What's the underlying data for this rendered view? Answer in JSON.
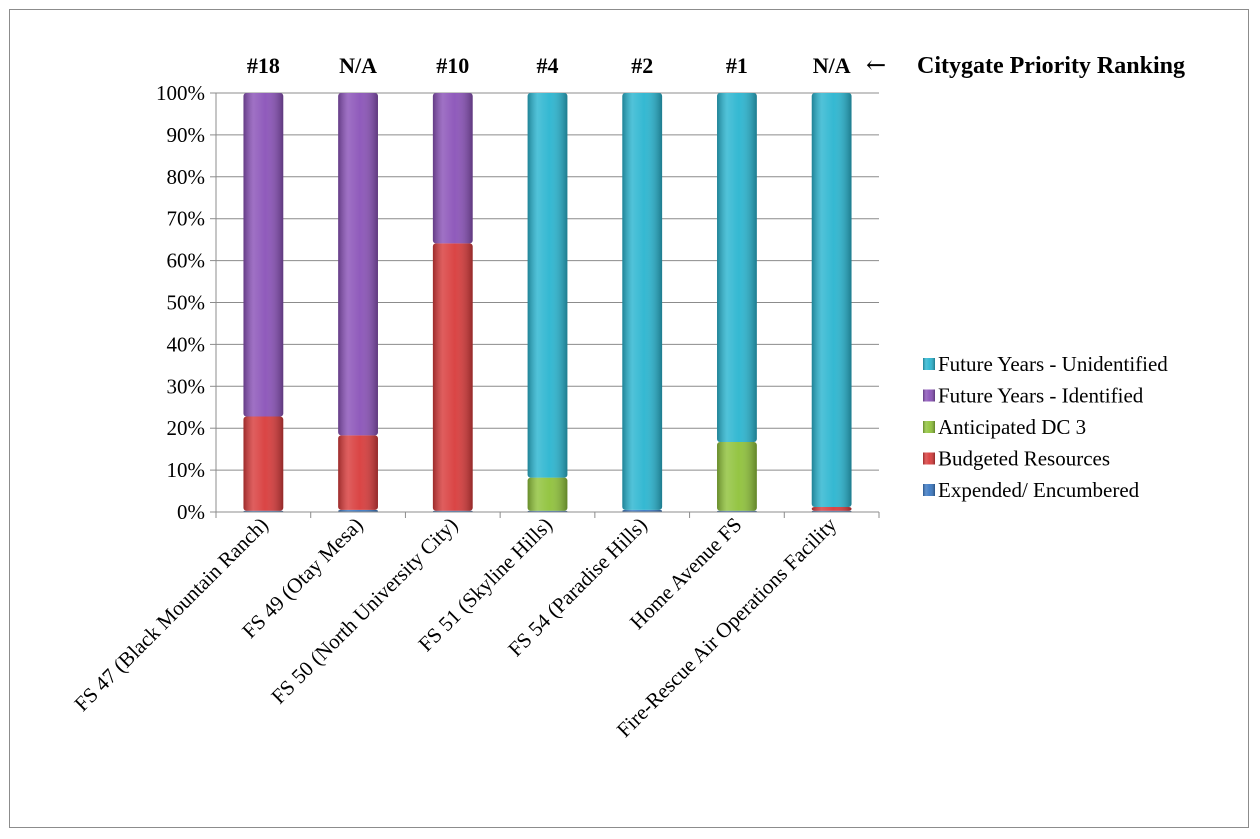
{
  "chart_data": {
    "type": "bar",
    "stacked": true,
    "percent_axis": true,
    "categories": [
      "FS 47 (Black Mountain Ranch)",
      "FS 49 (Otay Mesa)",
      "FS 50 (North University City)",
      "FS 51 (Skyline Hills)",
      "FS 54 (Paradise Hills)",
      "Home Avenue FS",
      "Fire-Rescue Air Operations Facility"
    ],
    "rankings": [
      "#18",
      "N/A",
      "#10",
      "#4",
      "#2",
      "#1",
      "N/A"
    ],
    "ranking_label": "Citygate Priority Ranking",
    "ranking_arrow": "←",
    "series": [
      {
        "name": "Expended/ Encumbered",
        "color": "#3a78c3",
        "values": [
          0.3,
          0.5,
          0.3,
          0.3,
          0.5,
          0.3,
          0.3
        ]
      },
      {
        "name": "Budgeted Resources",
        "color": "#d83b3b",
        "values": [
          22.5,
          17.8,
          63.8,
          0,
          0,
          0,
          0.9
        ]
      },
      {
        "name": "Anticipated DC 3",
        "color": "#8fc23a",
        "values": [
          0,
          0,
          0,
          7.9,
          0,
          16.4,
          0
        ]
      },
      {
        "name": "Future Years - Identified",
        "color": "#8a52b8",
        "values": [
          77.2,
          81.7,
          35.9,
          0,
          0,
          0,
          0
        ]
      },
      {
        "name": "Future Years - Unidentified",
        "color": "#2ab5d0",
        "values": [
          0,
          0,
          0,
          91.8,
          99.5,
          83.3,
          98.8
        ]
      }
    ],
    "ylim": [
      0,
      100
    ],
    "yticks": [
      "0%",
      "10%",
      "20%",
      "30%",
      "40%",
      "50%",
      "60%",
      "70%",
      "80%",
      "90%",
      "100%"
    ],
    "grid": true,
    "legend": "right",
    "title": "",
    "xlabel": "",
    "ylabel": ""
  }
}
